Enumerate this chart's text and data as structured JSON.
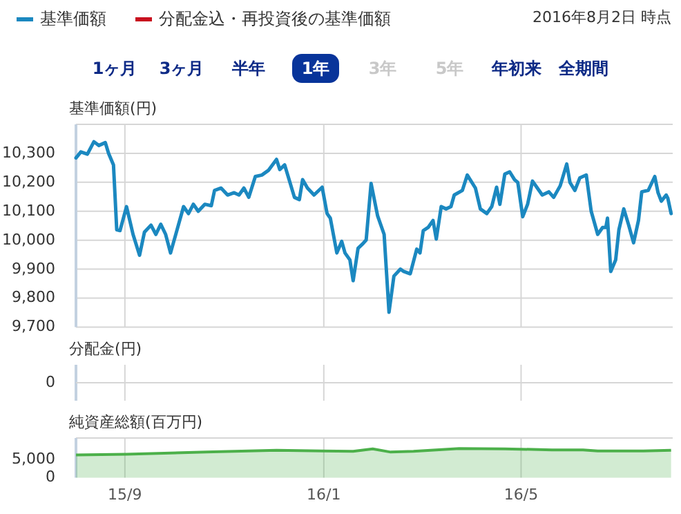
{
  "chart_data": [
    {
      "type": "line",
      "ylabel": "基準価額(円)",
      "legend": "top left",
      "grid": true,
      "tick_labels": "y",
      "xlim": [
        "2015-08-02",
        "2016-08-02"
      ],
      "xticks": [
        {
          "value": "2015-09-01",
          "label": null
        },
        {
          "value": "2016-01-01",
          "label": null
        },
        {
          "value": "2016-05-01",
          "label": null
        }
      ],
      "ylim": [
        9700,
        10400
      ],
      "yticks": [
        {
          "value": 9700,
          "label": "9,700"
        },
        {
          "value": 9800,
          "label": "9,800"
        },
        {
          "value": 9900,
          "label": "9,900"
        },
        {
          "value": 10000,
          "label": "10,000"
        },
        {
          "value": 10100,
          "label": "10,100"
        },
        {
          "value": 10200,
          "label": "10,200"
        },
        {
          "value": 10300,
          "label": "10,300"
        }
      ],
      "annotations": [
        "2016年8月2日 時点",
        "1ヶ月",
        "3ヶ月",
        "半年",
        "1年",
        "3年",
        "5年",
        "年初来",
        "全期間"
      ],
      "series": [
        {
          "name": "基準価額",
          "color": "#1b88c0",
          "x": [
            "2015-08-02",
            "2015-08-05",
            "2015-08-09",
            "2015-08-13",
            "2015-08-16",
            "2015-08-20",
            "2015-08-22",
            "2015-08-25",
            "2015-08-27",
            "2015-08-29",
            "2015-09-02",
            "2015-09-06",
            "2015-09-10",
            "2015-09-13",
            "2015-09-17",
            "2015-09-20",
            "2015-09-23",
            "2015-09-26",
            "2015-09-29",
            "2015-10-03",
            "2015-10-07",
            "2015-10-10",
            "2015-10-13",
            "2015-10-16",
            "2015-10-20",
            "2015-10-24",
            "2015-10-26",
            "2015-10-30",
            "2015-11-03",
            "2015-11-07",
            "2015-11-10",
            "2015-11-13",
            "2015-11-16",
            "2015-11-20",
            "2015-11-24",
            "2015-11-28",
            "2015-12-03",
            "2015-12-05",
            "2015-12-08",
            "2015-12-14",
            "2015-12-17",
            "2015-12-19",
            "2015-12-22",
            "2015-12-26",
            "2015-12-31",
            "2016-01-03",
            "2016-01-05",
            "2016-01-09",
            "2016-01-12",
            "2016-01-14",
            "2016-01-17",
            "2016-01-19",
            "2016-01-22",
            "2016-01-25",
            "2016-01-27",
            "2016-01-30",
            "2016-02-03",
            "2016-02-07",
            "2016-02-10",
            "2016-02-13",
            "2016-02-17",
            "2016-02-19",
            "2016-02-23",
            "2016-02-27",
            "2016-02-29",
            "2016-03-02",
            "2016-03-05",
            "2016-03-08",
            "2016-03-10",
            "2016-03-13",
            "2016-03-16",
            "2016-03-19",
            "2016-03-21",
            "2016-03-26",
            "2016-03-29",
            "2016-04-03",
            "2016-04-06",
            "2016-04-10",
            "2016-04-13",
            "2016-04-16",
            "2016-04-18",
            "2016-04-21",
            "2016-04-24",
            "2016-04-27",
            "2016-04-29",
            "2016-05-02",
            "2016-05-05",
            "2016-05-08",
            "2016-05-11",
            "2016-05-14",
            "2016-05-18",
            "2016-05-21",
            "2016-05-25",
            "2016-05-29",
            "2016-05-31",
            "2016-06-03",
            "2016-06-06",
            "2016-06-10",
            "2016-06-13",
            "2016-06-17",
            "2016-06-20",
            "2016-06-22",
            "2016-06-23",
            "2016-06-25",
            "2016-06-28",
            "2016-06-30",
            "2016-07-03",
            "2016-07-06",
            "2016-07-09",
            "2016-07-12",
            "2016-07-14",
            "2016-07-18",
            "2016-07-22",
            "2016-07-24",
            "2016-07-26",
            "2016-07-29",
            "2016-07-30",
            "2016-08-01"
          ],
          "values": [
            10284,
            10305,
            10297,
            10340,
            10327,
            10337,
            10300,
            10260,
            10036,
            10033,
            10116,
            10020,
            9948,
            10028,
            10052,
            10020,
            10055,
            10020,
            9956,
            10036,
            10116,
            10092,
            10124,
            10100,
            10124,
            10119,
            10172,
            10180,
            10156,
            10164,
            10156,
            10180,
            10148,
            10220,
            10225,
            10241,
            10279,
            10244,
            10260,
            10148,
            10140,
            10209,
            10180,
            10156,
            10183,
            10092,
            10076,
            9956,
            9996,
            9956,
            9932,
            9860,
            9972,
            9988,
            10001,
            10196,
            10084,
            10020,
            9751,
            9876,
            9900,
            9892,
            9884,
            9969,
            9956,
            10033,
            10044,
            10068,
            10004,
            10116,
            10108,
            10116,
            10156,
            10172,
            10225,
            10180,
            10108,
            10092,
            10116,
            10183,
            10124,
            10228,
            10236,
            10209,
            10199,
            10081,
            10124,
            10204,
            10180,
            10156,
            10167,
            10148,
            10188,
            10263,
            10199,
            10172,
            10215,
            10225,
            10100,
            10020,
            10044,
            10044,
            10076,
            9892,
            9932,
            10036,
            10108,
            10052,
            9991,
            10068,
            10167,
            10172,
            10220,
            10164,
            10135,
            10156,
            10145,
            10092
          ]
        },
        {
          "name": "分配金込・再投資後の基準価額",
          "color": "#c8101e"
        }
      ]
    },
    {
      "type": "other",
      "ylabel": "分配金(円)",
      "annotations": [
        "0"
      ]
    },
    {
      "type": "area",
      "ylabel": "純資産総額(百万円)",
      "grid": "x",
      "xlim": [
        "2015-08-02",
        "2016-08-02"
      ],
      "xticks": [
        {
          "value": "2015-09-01",
          "label": "15/9"
        },
        {
          "value": "2016-01-01",
          "label": "16/1"
        },
        {
          "value": "2016-05-01",
          "label": "16/5"
        }
      ],
      "ylim": [
        0,
        11000
      ],
      "yticks": [
        0,
        {
          "value": 5000,
          "label": "5,000"
        }
      ],
      "series": [
        {
          "color": "#4cb04a",
          "x": [
            "2015-08-02",
            "2015-09-02",
            "2015-10-21",
            "2015-12-03",
            "2015-12-31",
            "2016-01-19",
            "2016-01-31",
            "2016-02-11",
            "2016-02-25",
            "2016-03-24",
            "2016-04-21",
            "2016-05-20",
            "2016-06-08",
            "2016-06-17",
            "2016-07-15",
            "2016-08-01"
          ],
          "values": [
            6300,
            6500,
            7100,
            7600,
            7400,
            7300,
            8000,
            7100,
            7300,
            8100,
            8000,
            7700,
            7700,
            7400,
            7400,
            7600
          ]
        }
      ]
    }
  ]
}
